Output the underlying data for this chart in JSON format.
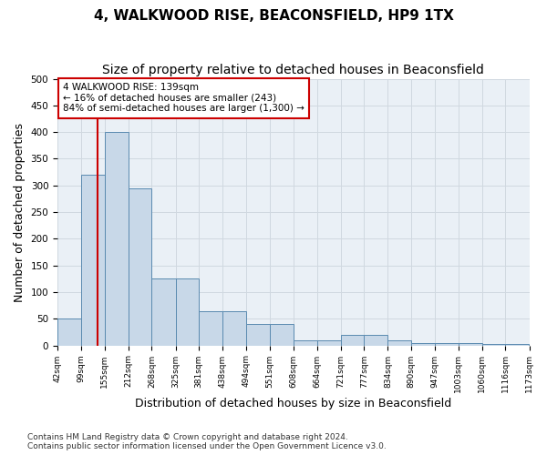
{
  "title": "4, WALKWOOD RISE, BEACONSFIELD, HP9 1TX",
  "subtitle": "Size of property relative to detached houses in Beaconsfield",
  "xlabel": "Distribution of detached houses by size in Beaconsfield",
  "ylabel": "Number of detached properties",
  "footer_line1": "Contains HM Land Registry data © Crown copyright and database right 2024.",
  "footer_line2": "Contains public sector information licensed under the Open Government Licence v3.0.",
  "annotation_line1": "4 WALKWOOD RISE: 139sqm",
  "annotation_line2": "← 16% of detached houses are smaller (243)",
  "annotation_line3": "84% of semi-detached houses are larger (1,300) →",
  "property_size": 139,
  "bar_edge_values": [
    42,
    99,
    155,
    212,
    268,
    325,
    381,
    438,
    494,
    551,
    608,
    664,
    721,
    777,
    834,
    890,
    947,
    1003,
    1060,
    1116,
    1173
  ],
  "bar_heights": [
    50,
    320,
    400,
    295,
    125,
    125,
    65,
    65,
    40,
    40,
    10,
    10,
    20,
    20,
    10,
    5,
    5,
    5,
    2,
    2
  ],
  "bar_color": "#c8d8e8",
  "bar_edge_color": "#5a8ab0",
  "red_line_color": "#cc0000",
  "annotation_box_color": "#cc0000",
  "ylim": [
    0,
    500
  ],
  "yticks": [
    0,
    50,
    100,
    150,
    200,
    250,
    300,
    350,
    400,
    450,
    500
  ],
  "background_color": "#ffffff",
  "grid_color": "#d0d8e0",
  "title_fontsize": 11,
  "subtitle_fontsize": 10,
  "axis_fontsize": 9
}
